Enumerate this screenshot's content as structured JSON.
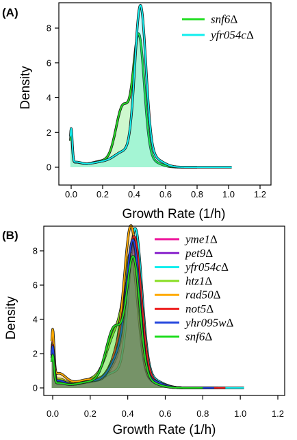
{
  "chart_data": [
    {
      "panel_label": "(A)",
      "type": "area",
      "xlabel": "Growth Rate (1/h)",
      "ylabel": "Density",
      "xlim": [
        -0.03,
        1.23
      ],
      "ylim": [
        0,
        9.4
      ],
      "x_ticks": [
        "0.0",
        "0.2",
        "0.4",
        "0.6",
        "0.8",
        "1.0",
        "1.2"
      ],
      "y_ticks": [
        "0",
        "2",
        "4",
        "6",
        "8"
      ],
      "legend_position": "top-right",
      "series": [
        {
          "name": "snf6",
          "suffix": "Δ",
          "color": "#22dd22",
          "peaks": [
            [
              0.0,
              1.7,
              0.007
            ],
            [
              0.025,
              0.25,
              0.04
            ],
            [
              0.2,
              0.35,
              0.08
            ],
            [
              0.33,
              3.4,
              0.045
            ],
            [
              0.43,
              7.2,
              0.035
            ],
            [
              0.5,
              0.35,
              0.06
            ]
          ],
          "x_end": 0.8
        },
        {
          "name": "yfr054c",
          "suffix": "Δ",
          "color": "#11eeee",
          "peaks": [
            [
              0.0,
              2.0,
              0.007
            ],
            [
              0.025,
              0.25,
              0.04
            ],
            [
              0.2,
              0.3,
              0.09
            ],
            [
              0.34,
              0.8,
              0.06
            ],
            [
              0.44,
              8.9,
              0.035
            ],
            [
              0.52,
              0.5,
              0.06
            ]
          ],
          "x_end": 1.02
        }
      ]
    },
    {
      "panel_label": "(B)",
      "type": "area",
      "xlabel": "Growth Rate (1/h)",
      "ylabel": "Density",
      "xlim": [
        -0.03,
        1.23
      ],
      "ylim": [
        0,
        9.4
      ],
      "x_ticks": [
        "0.0",
        "0.2",
        "0.4",
        "0.6",
        "0.8",
        "1.0",
        "1.2"
      ],
      "y_ticks": [
        "0",
        "2",
        "4",
        "6",
        "8"
      ],
      "legend_position": "top-right",
      "series": [
        {
          "name": "yme1",
          "suffix": "Δ",
          "color": "#ee1199",
          "peaks": [
            [
              0.0,
              2.3,
              0.007
            ],
            [
              0.03,
              0.5,
              0.04
            ],
            [
              0.22,
              0.4,
              0.08
            ],
            [
              0.36,
              1.8,
              0.05
            ],
            [
              0.43,
              7.5,
              0.035
            ],
            [
              0.52,
              0.4,
              0.06
            ]
          ],
          "x_end": 0.85
        },
        {
          "name": "pet9",
          "suffix": "Δ",
          "color": "#8822cc",
          "peaks": [
            [
              0.0,
              2.1,
              0.007
            ],
            [
              0.03,
              0.4,
              0.04
            ],
            [
              0.22,
              0.4,
              0.08
            ],
            [
              0.36,
              1.5,
              0.05
            ],
            [
              0.43,
              7.7,
              0.035
            ],
            [
              0.52,
              0.4,
              0.06
            ]
          ],
          "x_end": 0.88
        },
        {
          "name": "yfr054c",
          "suffix": "Δ",
          "color": "#11eeee",
          "peaks": [
            [
              0.0,
              2.0,
              0.007
            ],
            [
              0.025,
              0.25,
              0.04
            ],
            [
              0.2,
              0.3,
              0.09
            ],
            [
              0.34,
              0.8,
              0.06
            ],
            [
              0.44,
              8.9,
              0.035
            ],
            [
              0.52,
              0.5,
              0.06
            ]
          ],
          "x_end": 1.02
        },
        {
          "name": "htz1",
          "suffix": "Δ",
          "color": "#88dd22",
          "peaks": [
            [
              0.0,
              2.2,
              0.007
            ],
            [
              0.03,
              0.5,
              0.04
            ],
            [
              0.22,
              0.5,
              0.08
            ],
            [
              0.34,
              3.0,
              0.05
            ],
            [
              0.42,
              6.8,
              0.035
            ],
            [
              0.5,
              0.4,
              0.06
            ]
          ],
          "x_end": 0.8
        },
        {
          "name": "rad50",
          "suffix": "Δ",
          "color": "#ffaa00",
          "peaks": [
            [
              0.0,
              2.8,
              0.007
            ],
            [
              0.03,
              0.8,
              0.04
            ],
            [
              0.2,
              0.5,
              0.08
            ],
            [
              0.36,
              2.0,
              0.05
            ],
            [
              0.42,
              8.3,
              0.035
            ],
            [
              0.5,
              0.4,
              0.06
            ]
          ],
          "x_end": 0.82
        },
        {
          "name": "not5",
          "suffix": "Δ",
          "color": "#ee2222",
          "peaks": [
            [
              0.0,
              2.2,
              0.007
            ],
            [
              0.03,
              0.4,
              0.04
            ],
            [
              0.22,
              0.4,
              0.08
            ],
            [
              0.38,
              3.2,
              0.05
            ],
            [
              0.44,
              7.0,
              0.035
            ],
            [
              0.52,
              0.4,
              0.06
            ]
          ],
          "x_end": 0.92
        },
        {
          "name": "yhr095w",
          "suffix": "Δ",
          "color": "#2244dd",
          "peaks": [
            [
              0.0,
              2.1,
              0.007
            ],
            [
              0.03,
              0.4,
              0.04
            ],
            [
              0.22,
              0.4,
              0.08
            ],
            [
              0.36,
              1.8,
              0.05
            ],
            [
              0.43,
              7.8,
              0.035
            ],
            [
              0.52,
              0.4,
              0.06
            ]
          ],
          "x_end": 0.86
        },
        {
          "name": "snf6",
          "suffix": "Δ",
          "color": "#22dd22",
          "peaks": [
            [
              0.0,
              1.7,
              0.007
            ],
            [
              0.025,
              0.25,
              0.04
            ],
            [
              0.2,
              0.35,
              0.08
            ],
            [
              0.33,
              3.4,
              0.045
            ],
            [
              0.43,
              7.2,
              0.035
            ],
            [
              0.5,
              0.35,
              0.06
            ]
          ],
          "x_end": 0.8
        }
      ]
    }
  ]
}
